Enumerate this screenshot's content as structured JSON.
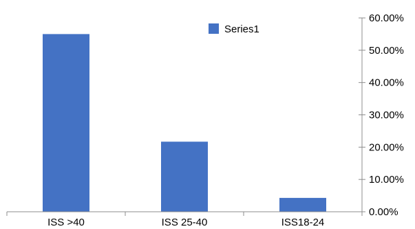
{
  "chart_data": {
    "type": "bar",
    "categories": [
      "ISS >40",
      "ISS 25-40",
      "ISS18-24"
    ],
    "series": [
      {
        "name": "Series1",
        "values": [
          0.55,
          0.217,
          0.043
        ],
        "color": "#4472C4"
      }
    ],
    "title": "",
    "xlabel": "",
    "ylabel": "",
    "ylim": [
      0,
      0.6
    ],
    "y_ticks": [
      0,
      0.1,
      0.2,
      0.3,
      0.4,
      0.5,
      0.6
    ],
    "y_tick_labels": [
      "0.00%",
      "10.00%",
      "20.00%",
      "30.00%",
      "40.00%",
      "50.00%",
      "60.00%"
    ],
    "y_axis_side": "right",
    "grid": false,
    "legend": {
      "position": "top-center",
      "entries": [
        "Series1"
      ]
    }
  }
}
